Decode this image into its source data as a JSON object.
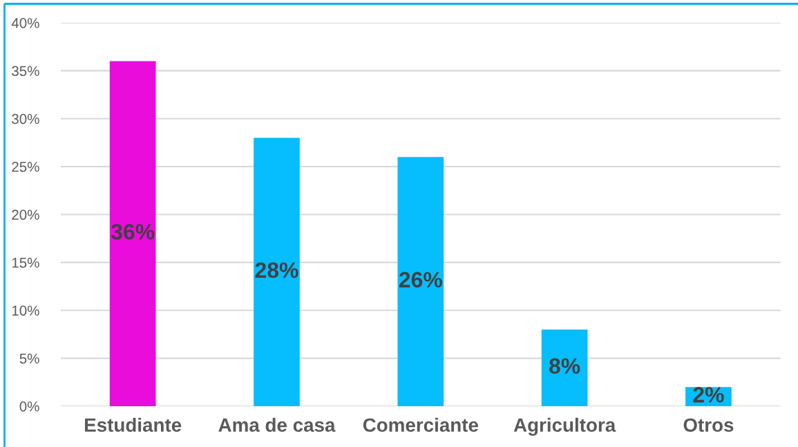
{
  "chart_data": {
    "type": "bar",
    "categories": [
      "Estudiante",
      "Ama de casa",
      "Comerciante",
      "Agricultora",
      "Otros"
    ],
    "values": [
      36,
      28,
      26,
      8,
      2
    ],
    "colors": [
      "#e90cdb",
      "#06bdfd",
      "#06bdfd",
      "#06bdfd",
      "#06bdfd"
    ],
    "value_labels": [
      "36%",
      "28%",
      "26%",
      "8%",
      "2%"
    ],
    "ylim": [
      0,
      40
    ],
    "yticks": [
      {
        "value": 0,
        "label": "0%"
      },
      {
        "value": 5,
        "label": "5%"
      },
      {
        "value": 10,
        "label": "10%"
      },
      {
        "value": 15,
        "label": "15%"
      },
      {
        "value": 20,
        "label": "20%"
      },
      {
        "value": 25,
        "label": "25%"
      },
      {
        "value": 30,
        "label": "30%"
      },
      {
        "value": 35,
        "label": "35%"
      },
      {
        "value": 40,
        "label": "40%"
      }
    ],
    "grid": "y",
    "legend": false
  }
}
